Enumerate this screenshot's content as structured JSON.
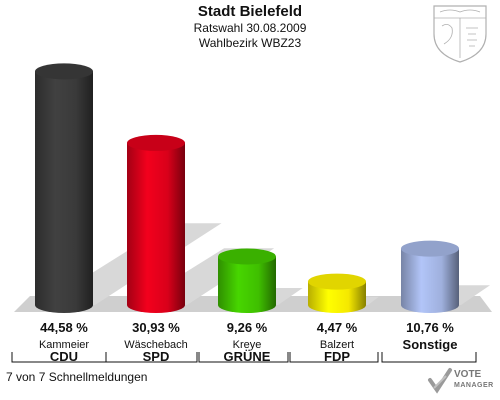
{
  "header": {
    "title": "Stadt Bielefeld",
    "subtitle": "Ratswahl 30.08.2009",
    "district": "Wahlbezirk WBZ23"
  },
  "status_text": "7 von 7 Schnellmeldungen",
  "logo": {
    "line1": "VOTE",
    "line2": "MANAGER",
    "icon": "check-mark-icon"
  },
  "crest": {
    "icon": "coat-of-arms-icon"
  },
  "colors": {
    "CDU": "#3a3a3a",
    "SPD": "#d9001a",
    "GRUENE": "#3fbf00",
    "FDP": "#f5e800",
    "Sonstige": "#9fb0dd"
  },
  "chart_data": {
    "type": "bar",
    "categories": [
      "CDU",
      "SPD",
      "GRÜNE",
      "FDP",
      "Sonstige"
    ],
    "candidates": [
      "Kammeier",
      "Wäschebach",
      "Kreye",
      "Balzert",
      ""
    ],
    "values": [
      44.58,
      30.93,
      9.26,
      4.47,
      10.76
    ],
    "labels": [
      "44,58 %",
      "30,93 %",
      "9,26 %",
      "4,47 %",
      "10,76 %"
    ],
    "unit": "%",
    "ylim": [
      0,
      50
    ],
    "title": "Stadt Bielefeld",
    "subtitle": "Ratswahl 30.08.2009 Wahlbezirk WBZ23"
  }
}
